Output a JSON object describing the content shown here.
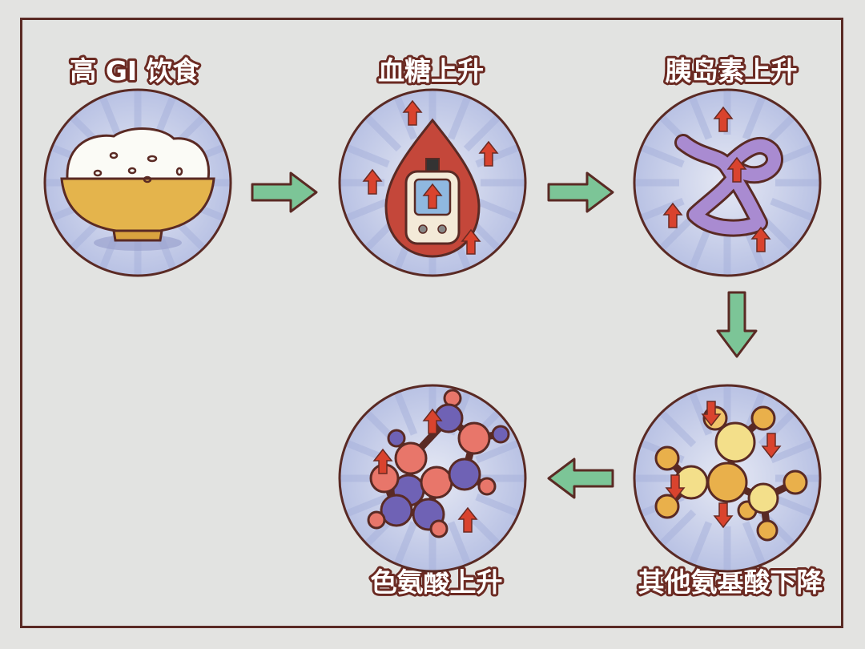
{
  "steps": [
    {
      "label": "高 GI 饮食",
      "icon": "rice-bowl-icon"
    },
    {
      "label": "血糖上升",
      "icon": "blood-glucose-meter-icon"
    },
    {
      "label": "胰岛素上升",
      "icon": "insulin-protein-icon"
    },
    {
      "label": "其他氨基酸下降",
      "icon": "amino-acid-molecule-icon"
    },
    {
      "label": "色氨酸上升",
      "icon": "tryptophan-molecule-icon"
    }
  ],
  "colors": {
    "outline": "#5a2a24",
    "flow_arrow": "#7cc597",
    "up_down_arrow": "#d9432e",
    "circle_fill": "#c9d0ea"
  }
}
